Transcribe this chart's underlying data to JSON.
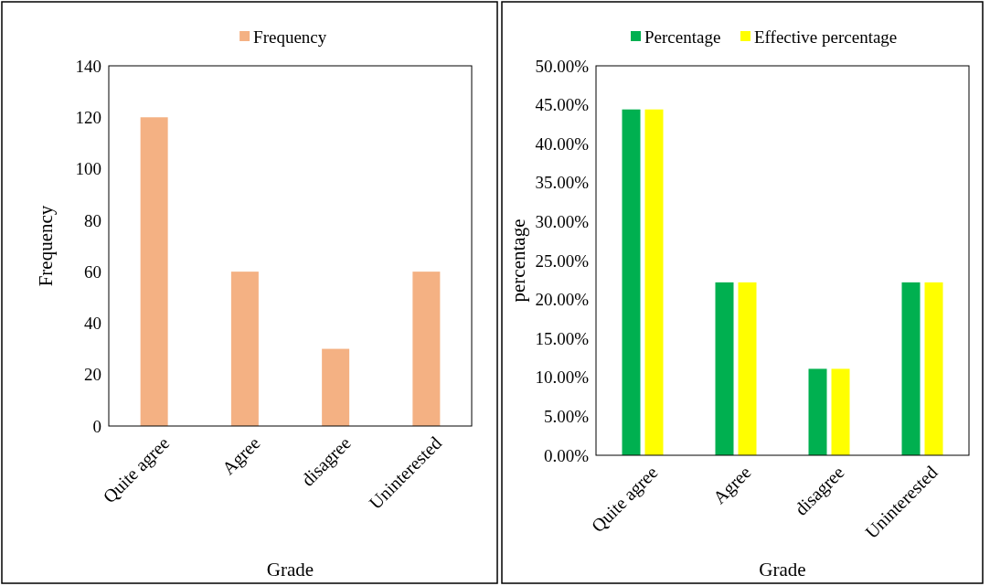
{
  "chart_data": [
    {
      "type": "bar",
      "xlabel": "Grade",
      "ylabel": "Frequency",
      "categories": [
        "Quite agree",
        "Agree",
        "disagree",
        "Uninterested"
      ],
      "series": [
        {
          "name": "Frequency",
          "color": "#f4b183",
          "values": [
            120,
            60,
            30,
            60
          ]
        }
      ],
      "ylim": [
        0,
        140
      ],
      "yticks": [
        0,
        20,
        40,
        60,
        80,
        100,
        120,
        140
      ],
      "legend": "top",
      "grid": false
    },
    {
      "type": "bar",
      "xlabel": "Grade",
      "ylabel": "percentage",
      "categories": [
        "Quite agree",
        "Agree",
        "disagree",
        "Uninterested"
      ],
      "series": [
        {
          "name": "Percentage",
          "color": "#00b050",
          "values": [
            44.4,
            22.2,
            11.1,
            22.2
          ]
        },
        {
          "name": "Effective percentage",
          "color": "#ffff00",
          "values": [
            44.4,
            22.2,
            11.1,
            22.2
          ]
        }
      ],
      "ylim": [
        0,
        50
      ],
      "yticks": [
        {
          "value": 0,
          "label": "0.00%"
        },
        {
          "value": 5,
          "label": "5.00%"
        },
        {
          "value": 10,
          "label": "10.00%"
        },
        {
          "value": 15,
          "label": "15.00%"
        },
        {
          "value": 20,
          "label": "20.00%"
        },
        {
          "value": 25,
          "label": "25.00%"
        },
        {
          "value": 30,
          "label": "30.00%"
        },
        {
          "value": 35,
          "label": "35.00%"
        },
        {
          "value": 40,
          "label": "40.00%"
        },
        {
          "value": 45,
          "label": "45.00%"
        },
        {
          "value": 50,
          "label": "50.00%"
        }
      ],
      "legend": "top",
      "grid": false
    }
  ]
}
